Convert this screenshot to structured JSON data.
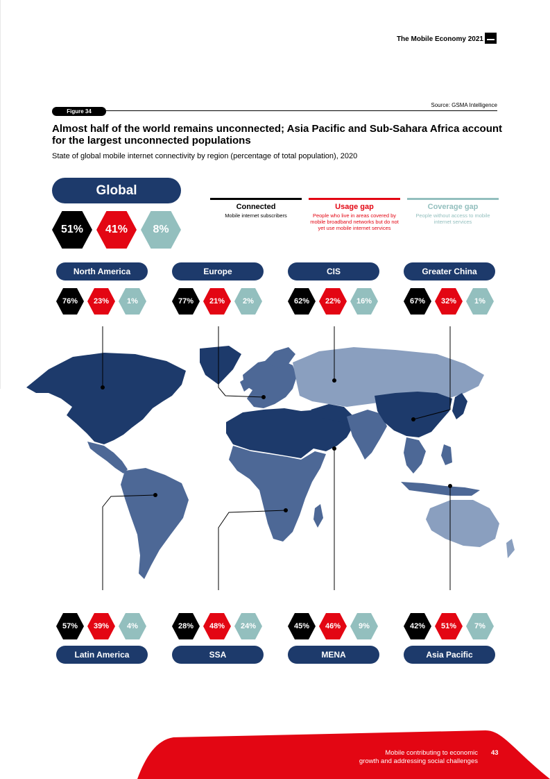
{
  "header": {
    "doc_title": "The Mobile Economy 2021"
  },
  "figure": {
    "label": "Figure 34",
    "source": "Source: GSMA Intelligence",
    "headline": "Almost half of the world remains unconnected; Asia Pacific and Sub-Sahara Africa account for the largest unconnected populations",
    "subhead": "State of global mobile internet connectivity by region (percentage of total population), 2020"
  },
  "colors": {
    "connected": "#000000",
    "usage_gap": "#e30613",
    "coverage_gap": "#93bfbe",
    "region_pill": "#1d3a6b"
  },
  "global": {
    "label": "Global",
    "connected": "51%",
    "usage": "41%",
    "coverage": "8%"
  },
  "legend": {
    "connected": {
      "title": "Connected",
      "desc": "Mobile internet subscribers"
    },
    "usage": {
      "title": "Usage gap",
      "desc": "People who live in areas covered by mobile broadband networks but do not yet use mobile internet services"
    },
    "coverage": {
      "title": "Coverage gap",
      "desc": "People without access to mobile internet services"
    }
  },
  "regions_top": [
    {
      "name": "North America",
      "connected": "76%",
      "usage": "23%",
      "coverage": "1%"
    },
    {
      "name": "Europe",
      "connected": "77%",
      "usage": "21%",
      "coverage": "2%"
    },
    {
      "name": "CIS",
      "connected": "62%",
      "usage": "22%",
      "coverage": "16%"
    },
    {
      "name": "Greater China",
      "connected": "67%",
      "usage": "32%",
      "coverage": "1%"
    }
  ],
  "regions_bottom": [
    {
      "name": "Latin America",
      "connected": "57%",
      "usage": "39%",
      "coverage": "4%"
    },
    {
      "name": "SSA",
      "connected": "28%",
      "usage": "48%",
      "coverage": "24%"
    },
    {
      "name": "MENA",
      "connected": "45%",
      "usage": "46%",
      "coverage": "9%"
    },
    {
      "name": "Asia Pacific",
      "connected": "42%",
      "usage": "51%",
      "coverage": "7%"
    }
  ],
  "footer": {
    "line1": "Mobile contributing to economic",
    "line2": "growth and addressing social challenges",
    "page": "43"
  }
}
